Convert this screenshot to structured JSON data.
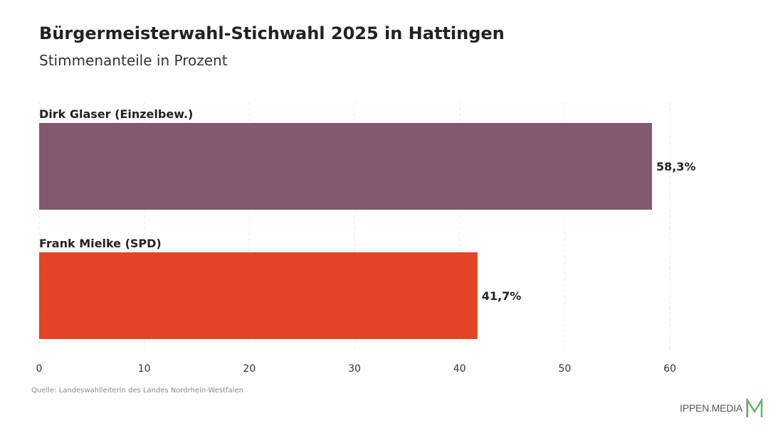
{
  "header": {
    "title": "Bürgermeisterwahl-Stichwahl 2025 in Hattingen",
    "subtitle": "Stimmenanteile in Prozent"
  },
  "footer": {
    "source": "Quelle: Landeswahlleiterin des Landes Nordrhein-Westfalen",
    "logo_text": "IPPEN.MEDIA",
    "logo_mark": "M"
  },
  "chart_data": {
    "type": "bar",
    "orientation": "horizontal",
    "title": "Bürgermeisterwahl-Stichwahl 2025 in Hattingen",
    "subtitle": "Stimmenanteile in Prozent",
    "categories": [
      "Dirk Glaser (Einzelbew.)",
      "Frank Mielke (SPD)"
    ],
    "values": [
      58.3,
      41.7
    ],
    "value_labels": [
      "58,3%",
      "41,7%"
    ],
    "colors": [
      "#82596f",
      "#e34428"
    ],
    "xlim": [
      0,
      60
    ],
    "xticks": [
      0,
      10,
      20,
      30,
      40,
      50,
      60
    ],
    "xtick_labels": [
      "0",
      "10",
      "20",
      "30",
      "40",
      "50",
      "60"
    ],
    "grid": "vertical dashed",
    "legend": "none"
  }
}
